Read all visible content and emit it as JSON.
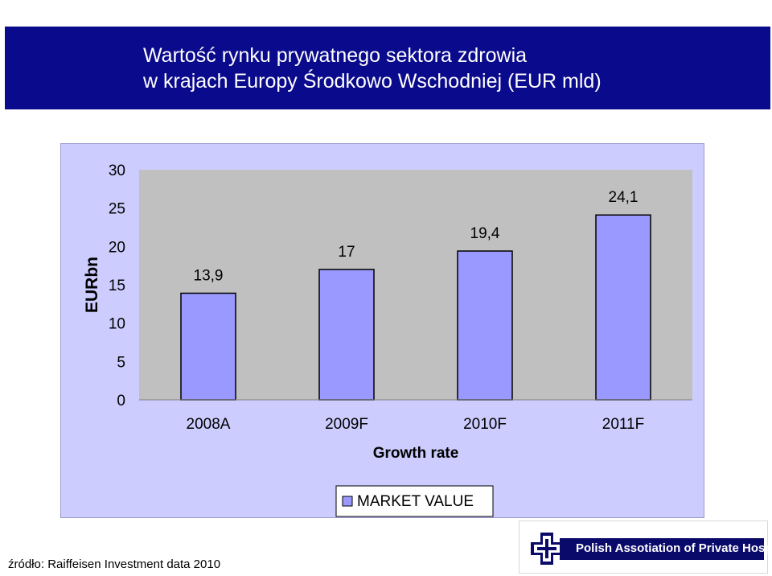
{
  "title": {
    "line1": "Wartość rynku prywatnego sektora zdrowia",
    "line2": "w krajach Europy Środkowo Wschodniej (EUR mld)"
  },
  "chart_data": {
    "type": "bar",
    "categories": [
      "2008A",
      "2009F",
      "2010F",
      "2011F"
    ],
    "values": [
      13.9,
      17,
      19.4,
      24.1
    ],
    "data_labels": [
      "13,9",
      "17",
      "19,4",
      "24,1"
    ],
    "yticks": [
      0,
      5,
      10,
      15,
      20,
      25,
      30
    ],
    "ylim": [
      0,
      30
    ],
    "ylabel": "EURbn",
    "xlabel": "Growth rate",
    "legend": {
      "label": "MARKET VALUE",
      "position": "bottom"
    },
    "grid": false,
    "colors": {
      "bar": "#9999ff",
      "plot_bg": "#c0c0c0",
      "panel_bg": "#ccccff"
    }
  },
  "footer": {
    "source": "źródło: Raiffeisen Investment data 2010",
    "logo_text": "Polish Assotiation of Private Hospitals"
  },
  "colors": {
    "title_bg": "#0a0a8c",
    "title_text": "#ffffff"
  }
}
